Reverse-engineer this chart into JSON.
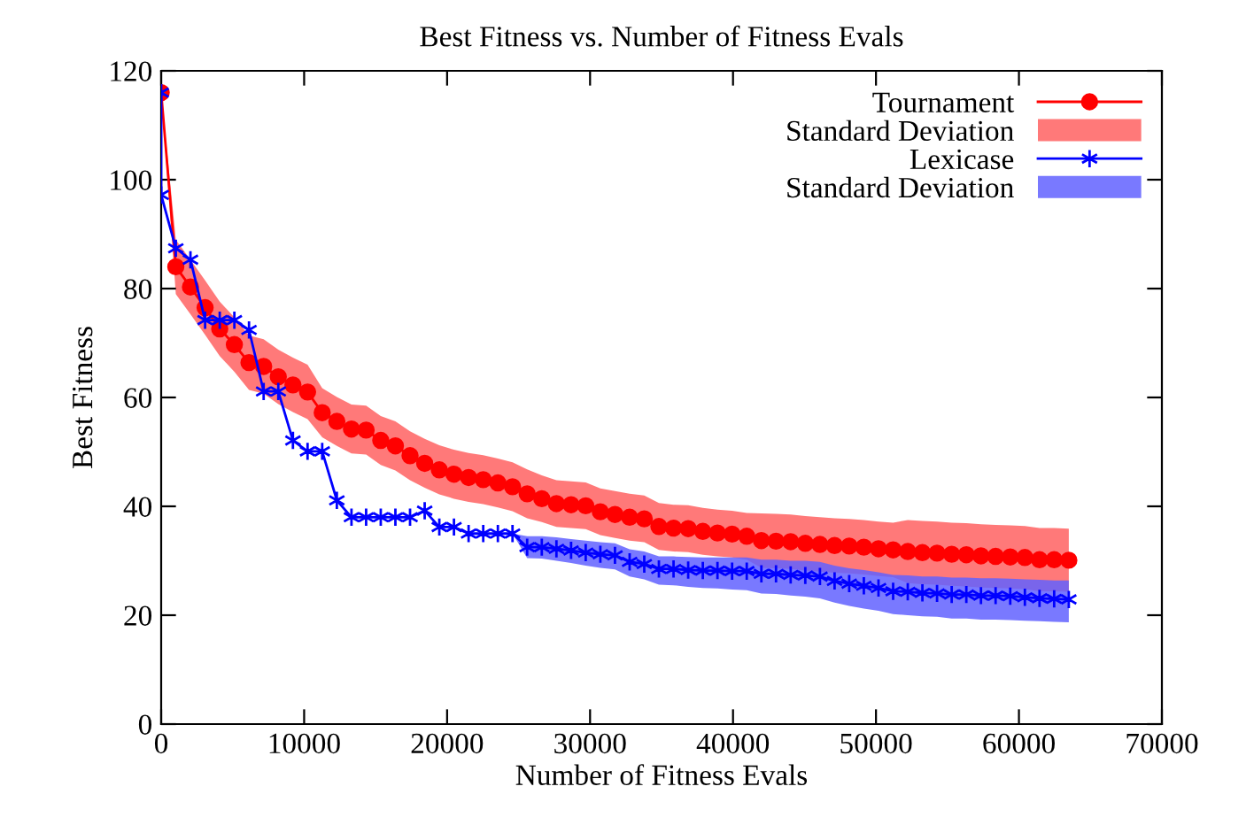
{
  "chart_data": {
    "type": "line",
    "title": "Best Fitness vs. Number of Fitness Evals",
    "xlabel": "Number of Fitness Evals",
    "ylabel": "Best Fitness",
    "xlim": [
      0,
      70000
    ],
    "xticks": [
      0,
      10000,
      20000,
      30000,
      40000,
      50000,
      60000,
      70000
    ],
    "ylim": [
      0,
      120
    ],
    "yticks": [
      0,
      20,
      40,
      60,
      80,
      100,
      120
    ],
    "legend": "top right",
    "grid": false,
    "annotations": [
      "Standard Deviation",
      "Standard Deviation"
    ],
    "series": [
      {
        "name": "Tournament",
        "color": "#ff0000",
        "marker": "circle",
        "line_style": "solid",
        "x": [
          0,
          1024,
          2048,
          3072,
          4096,
          5120,
          6144,
          7168,
          8192,
          9216,
          10240,
          11264,
          12288,
          13312,
          14336,
          15360,
          16384,
          17408,
          18432,
          19456,
          20480,
          21504,
          22528,
          23552,
          24576,
          25600,
          26624,
          27648,
          28672,
          29696,
          30720,
          31744,
          32768,
          33792,
          34816,
          35840,
          36864,
          37888,
          38912,
          39936,
          40960,
          41984,
          43008,
          44032,
          45056,
          46080,
          47104,
          48128,
          49152,
          50176,
          51200,
          52224,
          53248,
          54272,
          55296,
          56320,
          57344,
          58368,
          59392,
          60416,
          61440,
          62464,
          63488
        ],
        "values": [
          116,
          84.0,
          80.3,
          76.5,
          72.6,
          69.7,
          66.4,
          65.7,
          63.8,
          62.3,
          61.0,
          57.2,
          55.6,
          54.2,
          54.0,
          52.1,
          51.1,
          49.3,
          47.9,
          46.7,
          45.9,
          45.3,
          44.9,
          44.3,
          43.6,
          42.3,
          41.4,
          40.5,
          40.3,
          40.1,
          39.0,
          38.5,
          38.0,
          37.7,
          36.3,
          36.0,
          35.9,
          35.4,
          35.1,
          34.9,
          34.5,
          33.7,
          33.6,
          33.5,
          33.2,
          33.0,
          32.8,
          32.7,
          32.5,
          32.2,
          32.0,
          31.7,
          31.5,
          31.4,
          31.2,
          31.1,
          30.9,
          30.8,
          30.7,
          30.6,
          30.2,
          30.2,
          30.1
        ],
        "upper": [
          116,
          89.0,
          85.3,
          81.5,
          77.6,
          74.7,
          71.4,
          70.7,
          68.8,
          67.3,
          66.0,
          61.7,
          60.1,
          58.7,
          58.5,
          56.6,
          55.6,
          53.8,
          52.4,
          51.2,
          50.4,
          49.8,
          49.4,
          48.8,
          48.1,
          46.8,
          45.7,
          44.8,
          44.6,
          44.4,
          43.3,
          42.8,
          42.3,
          42.0,
          40.6,
          40.3,
          40.2,
          39.7,
          39.4,
          39.2,
          38.8,
          38.7,
          38.6,
          38.5,
          38.2,
          38.0,
          37.8,
          37.7,
          37.5,
          37.2,
          37.0,
          37.5,
          37.3,
          37.2,
          37.0,
          36.9,
          36.7,
          36.6,
          36.5,
          36.4,
          36.0,
          36.0,
          35.9
        ],
        "lower": [
          116,
          79.0,
          75.3,
          71.5,
          67.6,
          64.7,
          61.4,
          60.7,
          58.8,
          57.3,
          56.0,
          52.7,
          51.1,
          49.7,
          49.5,
          47.6,
          46.6,
          44.8,
          43.4,
          42.2,
          41.4,
          40.8,
          40.4,
          39.8,
          39.1,
          37.8,
          37.1,
          36.2,
          36.0,
          35.8,
          34.7,
          34.2,
          33.7,
          33.4,
          32.0,
          31.7,
          31.6,
          31.1,
          30.8,
          30.6,
          30.2,
          28.7,
          28.6,
          28.5,
          28.2,
          28.0,
          27.8,
          27.7,
          27.5,
          27.2,
          27.0,
          25.9,
          25.7,
          25.6,
          25.4,
          25.3,
          25.1,
          25.0,
          24.9,
          24.8,
          24.4,
          24.4,
          24.3
        ]
      },
      {
        "name": "Lexicase",
        "color": "#0000ff",
        "marker": "cross",
        "line_style": "solid",
        "x": [
          0,
          0,
          1024,
          2048,
          3072,
          4096,
          5120,
          6144,
          7168,
          8192,
          9216,
          10240,
          11264,
          12288,
          13312,
          14336,
          15360,
          16384,
          17408,
          18432,
          19456,
          20480,
          21504,
          22528,
          23552,
          24576,
          25600,
          26624,
          27648,
          28672,
          29696,
          30720,
          31744,
          32768,
          33792,
          34816,
          35840,
          36864,
          37888,
          38912,
          39936,
          40960,
          41984,
          43008,
          44032,
          45056,
          46080,
          47104,
          48128,
          49152,
          50176,
          51200,
          52224,
          53248,
          54272,
          55296,
          56320,
          57344,
          58368,
          59392,
          60416,
          61440,
          62464,
          63488
        ],
        "values": [
          116,
          97.2,
          87.4,
          85.3,
          74.2,
          74.2,
          74.2,
          72.4,
          61.1,
          61.1,
          52.1,
          50.1,
          50.1,
          41.1,
          38.0,
          38.0,
          38.0,
          38.0,
          38.0,
          39.2,
          36.2,
          36.2,
          35.0,
          35.0,
          35.0,
          35.0,
          32.5,
          32.5,
          32.2,
          31.9,
          31.5,
          31.2,
          31.0,
          29.8,
          29.4,
          28.5,
          28.5,
          28.3,
          28.2,
          28.2,
          28.1,
          28.1,
          27.6,
          27.6,
          27.4,
          27.3,
          27.1,
          26.3,
          25.8,
          25.4,
          25.0,
          24.4,
          24.3,
          24.1,
          24.0,
          23.8,
          23.8,
          23.6,
          23.6,
          23.5,
          23.3,
          23.1,
          23.0,
          22.9
        ],
        "upper": [
          null,
          null,
          null,
          null,
          null,
          null,
          null,
          null,
          null,
          null,
          null,
          null,
          null,
          null,
          null,
          null,
          null,
          null,
          null,
          null,
          null,
          null,
          null,
          null,
          null,
          35.0,
          34.5,
          34.5,
          34.3,
          34.0,
          33.7,
          33.4,
          33.2,
          32.1,
          31.7,
          30.8,
          30.8,
          30.7,
          30.6,
          30.6,
          30.6,
          30.6,
          30.2,
          30.2,
          30.0,
          30.0,
          29.8,
          29.1,
          28.6,
          28.3,
          27.9,
          27.4,
          27.3,
          27.1,
          27.1,
          26.9,
          26.9,
          26.8,
          26.8,
          26.7,
          26.6,
          26.5,
          26.4,
          26.4
        ],
        "lower": [
          null,
          null,
          null,
          null,
          null,
          null,
          null,
          null,
          null,
          null,
          null,
          null,
          null,
          null,
          null,
          null,
          null,
          null,
          null,
          null,
          null,
          null,
          null,
          null,
          null,
          35.0,
          30.5,
          30.4,
          30.0,
          29.6,
          29.1,
          28.7,
          28.4,
          27.1,
          26.6,
          25.6,
          25.5,
          25.2,
          25.0,
          24.9,
          24.7,
          24.6,
          24.0,
          23.9,
          23.6,
          23.4,
          23.1,
          22.3,
          21.7,
          21.2,
          20.8,
          20.2,
          20.0,
          19.8,
          19.7,
          19.4,
          19.4,
          19.2,
          19.2,
          19.1,
          19.0,
          18.9,
          18.8,
          18.7
        ]
      }
    ]
  }
}
